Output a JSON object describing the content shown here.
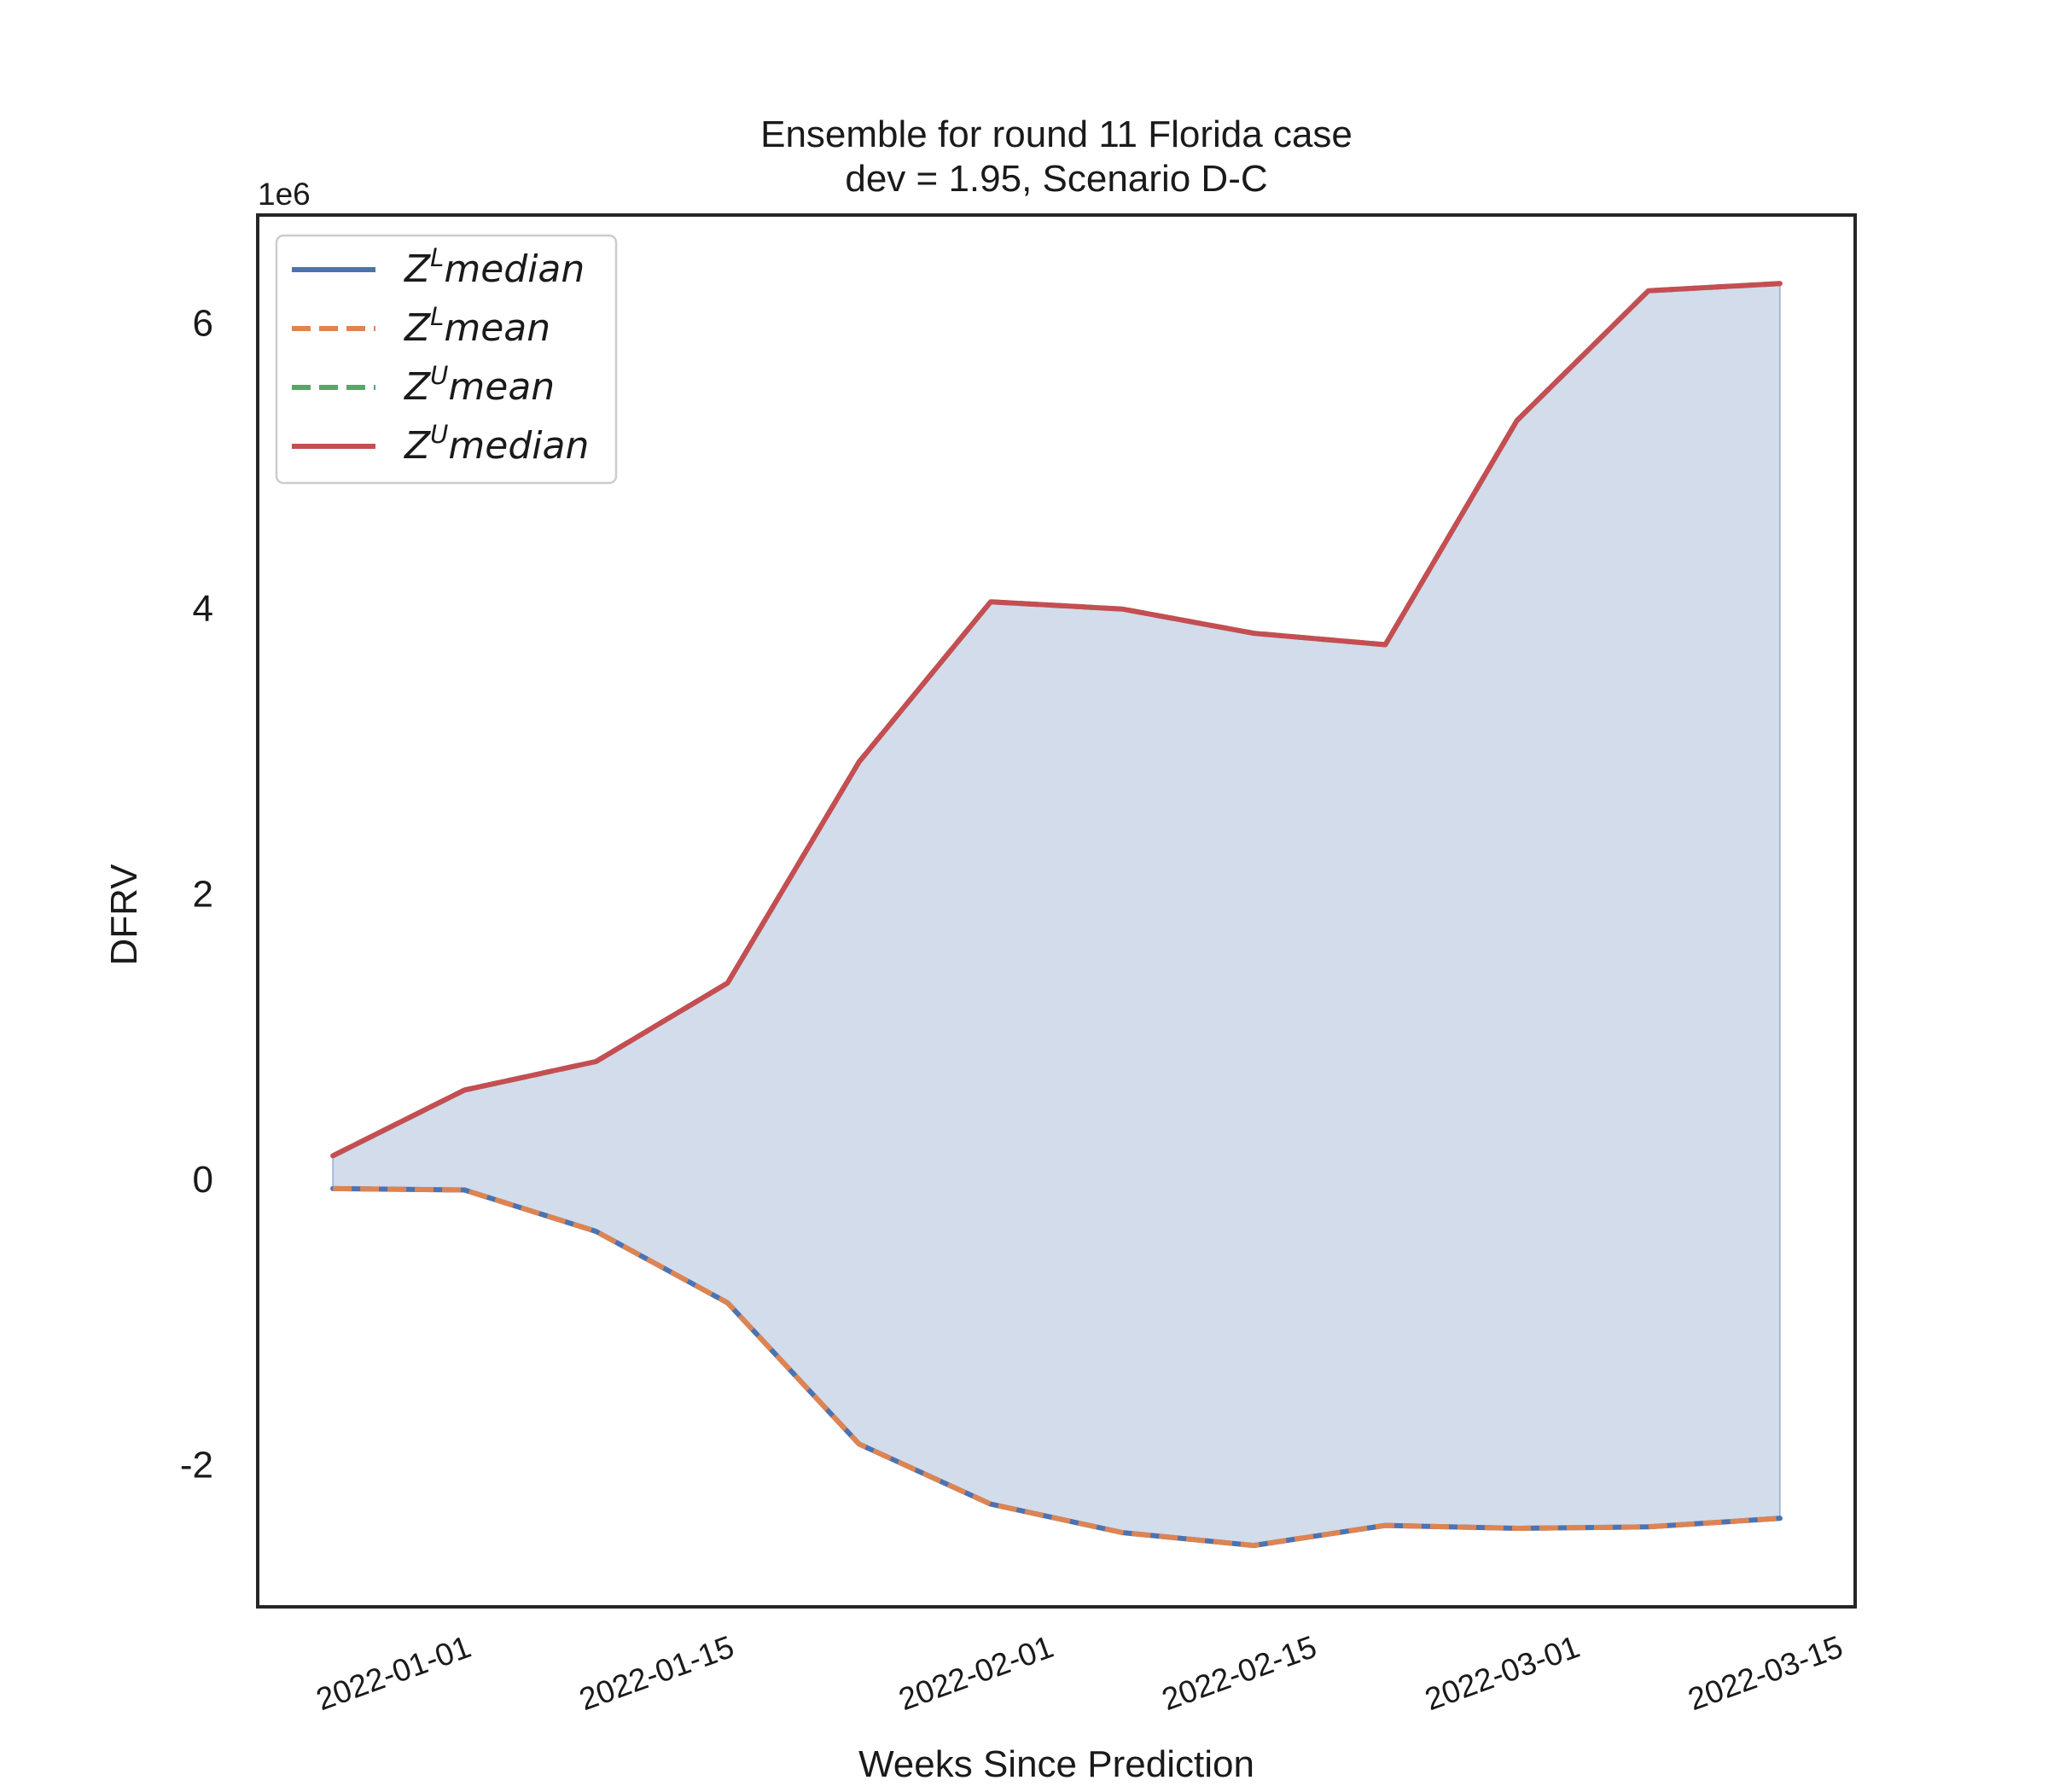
{
  "chart_data": {
    "type": "area",
    "title_lines": [
      "Ensemble for round 11 Florida case",
      "dev = 1.95, Scenario D-C"
    ],
    "xlabel": "Weeks Since Prediction",
    "ylabel": "DFRV",
    "y_offset_text": "1e6",
    "x_start": "2021-12-25",
    "x_tick_dates": [
      "2022-01-01",
      "2022-01-15",
      "2022-02-01",
      "2022-02-15",
      "2022-03-01",
      "2022-03-15"
    ],
    "x_tick_labels": [
      "2022-01-01",
      "2022-01-15",
      "2022-02-01",
      "2022-02-15",
      "2022-03-01",
      "2022-03-15"
    ],
    "y_ticks": [
      -2,
      0,
      2,
      4,
      6
    ],
    "y_tick_labels": [
      "-2",
      "0",
      "2",
      "4",
      "6"
    ],
    "xlim": [
      "2021-12-21",
      "2022-03-16"
    ],
    "ylim": [
      -3.0,
      6.75
    ],
    "x": [
      "2021-12-25",
      "2022-01-01",
      "2022-01-08",
      "2022-01-15",
      "2022-01-22",
      "2022-01-29",
      "2022-02-05",
      "2022-02-12",
      "2022-02-19",
      "2022-02-26",
      "2022-03-05",
      "2022-03-12"
    ],
    "series": [
      {
        "name": "Z^L median",
        "legend_base": "Z",
        "legend_sup": "L",
        "legend_rest": "median",
        "color": "#4c72b0",
        "dash": "solid",
        "values": [
          -0.07,
          -0.08,
          -0.37,
          -0.87,
          -1.86,
          -2.28,
          -2.48,
          -2.57,
          -2.43,
          -2.45,
          -2.44,
          -2.38
        ]
      },
      {
        "name": "Z^L mean",
        "legend_base": "Z",
        "legend_sup": "L",
        "legend_rest": "mean",
        "color": "#dd8452",
        "dash": "dashed",
        "values": [
          -0.07,
          -0.08,
          -0.37,
          -0.87,
          -1.86,
          -2.28,
          -2.48,
          -2.57,
          -2.43,
          -2.45,
          -2.44,
          -2.38
        ]
      },
      {
        "name": "Z^U mean",
        "legend_base": "Z",
        "legend_sup": "U",
        "legend_rest": "mean",
        "color": "#55a868",
        "dash": "dashed",
        "values": [
          0.16,
          0.62,
          0.82,
          1.37,
          2.92,
          4.04,
          3.99,
          3.82,
          3.74,
          5.31,
          6.22,
          6.27
        ]
      },
      {
        "name": "Z^U median",
        "legend_base": "Z",
        "legend_sup": "U",
        "legend_rest": "median",
        "color": "#c44e52",
        "dash": "solid",
        "values": [
          0.16,
          0.62,
          0.82,
          1.37,
          2.92,
          4.04,
          3.99,
          3.82,
          3.74,
          5.31,
          6.22,
          6.27
        ]
      }
    ],
    "fill_between": {
      "lower_series": 0,
      "upper_series": 3,
      "color": "#4c72b0",
      "opacity": 0.25
    },
    "legend_position": "top-left",
    "grid": false
  }
}
